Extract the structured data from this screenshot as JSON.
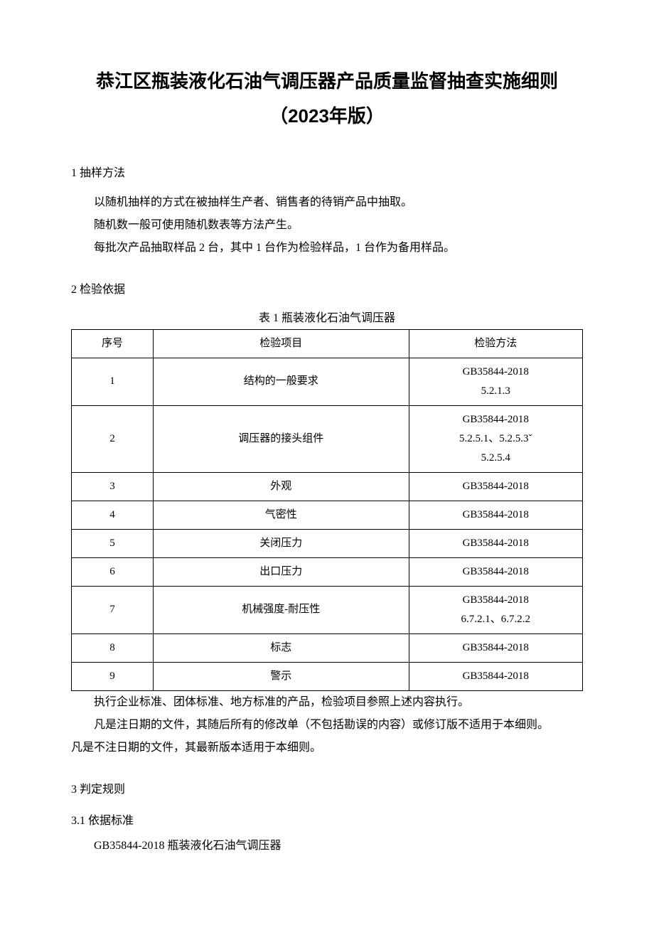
{
  "title_line1": "恭江区瓶装液化石油气调压器产品质量监督抽查实施细则",
  "title_line2": "（2023年版）",
  "section1": {
    "heading": "1 抽样方法",
    "paras": [
      "以随机抽样的方式在被抽样生产者、销售者的待销产品中抽取。",
      "随机数一般可使用随机数表等方法产生。",
      "每批次产品抽取样品 2 台，其中 1 台作为检验样品，1 台作为备用样品。"
    ]
  },
  "section2": {
    "heading": "2 检验依据",
    "table_caption": "表 1 瓶装液化石油气调压器",
    "columns": [
      "序号",
      "检验项目",
      "检验方法"
    ],
    "rows": [
      {
        "idx": "1",
        "item": "结构的一般要求",
        "method": "GB35844-2018\n5.2.1.3"
      },
      {
        "idx": "2",
        "item": "调压器的接头组件",
        "method": "GB35844-2018\n5.2.5.1、5.2.5.3ˇ\n5.2.5.4"
      },
      {
        "idx": "3",
        "item": "外观",
        "method": "GB35844-2018"
      },
      {
        "idx": "4",
        "item": "气密性",
        "method": "GB35844-2018"
      },
      {
        "idx": "5",
        "item": "关闭压力",
        "method": "GB35844-2018"
      },
      {
        "idx": "6",
        "item": "出口压力",
        "method": "GB35844-2018"
      },
      {
        "idx": "7",
        "item": "机械强度-耐压性",
        "method": "GB35844-2018\n6.7.2.1、6.7.2.2"
      },
      {
        "idx": "8",
        "item": "标志",
        "method": "GB35844-2018"
      },
      {
        "idx": "9",
        "item": "警示",
        "method": "GB35844-2018"
      }
    ],
    "after_paras": [
      "执行企业标准、团体标准、地方标准的产品，检验项目参照上述内容执行。",
      "凡是注日期的文件，其随后所有的修改单（不包括勘误的内容）或修订版不适用于本细则。"
    ],
    "after_unindented": "凡是不注日期的文件，其最新版本适用于本细则。"
  },
  "section3": {
    "heading": "3 判定规则",
    "sub1_heading": "3.1  依据标准",
    "sub1_line": "GB35844-2018 瓶装液化石油气调压器"
  },
  "colors": {
    "text": "#000000",
    "background": "#ffffff",
    "border": "#000000"
  }
}
